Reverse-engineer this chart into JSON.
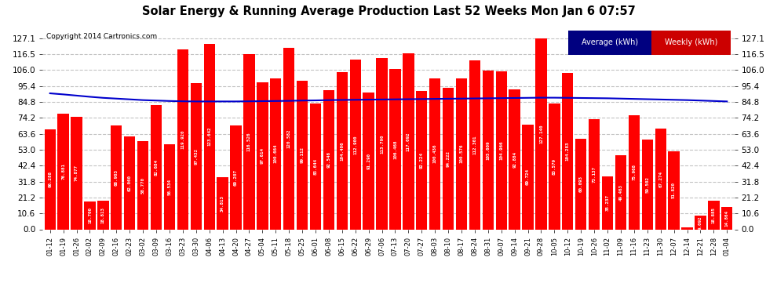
{
  "title": "Solar Energy & Running Average Production Last 52 Weeks Mon Jan 6 07:57",
  "copyright": "Copyright 2014 Cartronics.com",
  "bar_color": "#ff0000",
  "avg_line_color": "#0000cc",
  "background_color": "#ffffff",
  "plot_bg_color": "#ffffff",
  "grid_color": "#aaaaaa",
  "categories": [
    "01-12",
    "01-19",
    "01-26",
    "02-02",
    "02-09",
    "02-16",
    "02-23",
    "03-02",
    "03-09",
    "03-16",
    "03-23",
    "03-30",
    "04-06",
    "04-13",
    "04-20",
    "04-27",
    "05-04",
    "05-11",
    "05-18",
    "05-25",
    "06-01",
    "06-08",
    "06-15",
    "06-22",
    "06-29",
    "07-06",
    "07-13",
    "07-20",
    "07-27",
    "08-03",
    "08-10",
    "08-17",
    "08-24",
    "08-31",
    "09-07",
    "09-14",
    "09-21",
    "09-28",
    "10-05",
    "10-12",
    "10-19",
    "10-26",
    "11-02",
    "11-09",
    "11-16",
    "11-23",
    "11-30",
    "12-07",
    "12-14",
    "12-21",
    "12-28",
    "01-04"
  ],
  "bar_values": [
    66.288,
    76.881,
    74.877,
    18.7,
    18.813,
    68.903,
    62.06,
    58.77,
    82.684,
    56.534,
    119.92,
    97.432,
    123.642,
    34.813,
    69.207,
    116.526,
    97.614,
    100.664,
    120.582,
    99.112,
    83.644,
    92.546,
    104.406,
    112.9,
    91.29,
    113.79,
    106.468,
    117.092,
    92.224,
    100.436,
    94.222,
    100.576,
    112.301,
    105.609,
    104.966,
    92.884,
    69.724,
    127.14,
    83.579,
    104.283,
    60.093,
    73.137,
    35.237,
    49.463,
    75.968,
    59.502,
    67.274,
    51.82,
    1.053,
    9.092,
    18.885,
    14.864
  ],
  "avg_values": [
    90.5,
    89.8,
    89.0,
    88.2,
    87.5,
    87.0,
    86.5,
    86.0,
    85.7,
    85.4,
    85.2,
    85.1,
    85.1,
    85.1,
    85.1,
    85.2,
    85.3,
    85.4,
    85.5,
    85.7,
    85.8,
    86.0,
    86.1,
    86.2,
    86.3,
    86.4,
    86.5,
    86.6,
    86.7,
    86.8,
    86.9,
    87.0,
    87.1,
    87.2,
    87.3,
    87.4,
    87.5,
    87.6,
    87.6,
    87.5,
    87.4,
    87.3,
    87.2,
    87.0,
    86.8,
    86.6,
    86.4,
    86.2,
    86.0,
    85.7,
    85.4,
    85.1
  ],
  "yticks": [
    0.0,
    10.6,
    21.2,
    31.8,
    42.4,
    53.0,
    63.6,
    74.2,
    84.8,
    95.4,
    106.0,
    116.5,
    127.1
  ],
  "ylim_max": 135.0,
  "legend_avg_label": "Average (kWh)",
  "legend_weekly_label": "Weekly (kWh)",
  "legend_avg_color": "#0000cc",
  "legend_avg_bg": "#000080",
  "legend_weekly_color": "#cc0000",
  "legend_weekly_bg": "#cc0000"
}
